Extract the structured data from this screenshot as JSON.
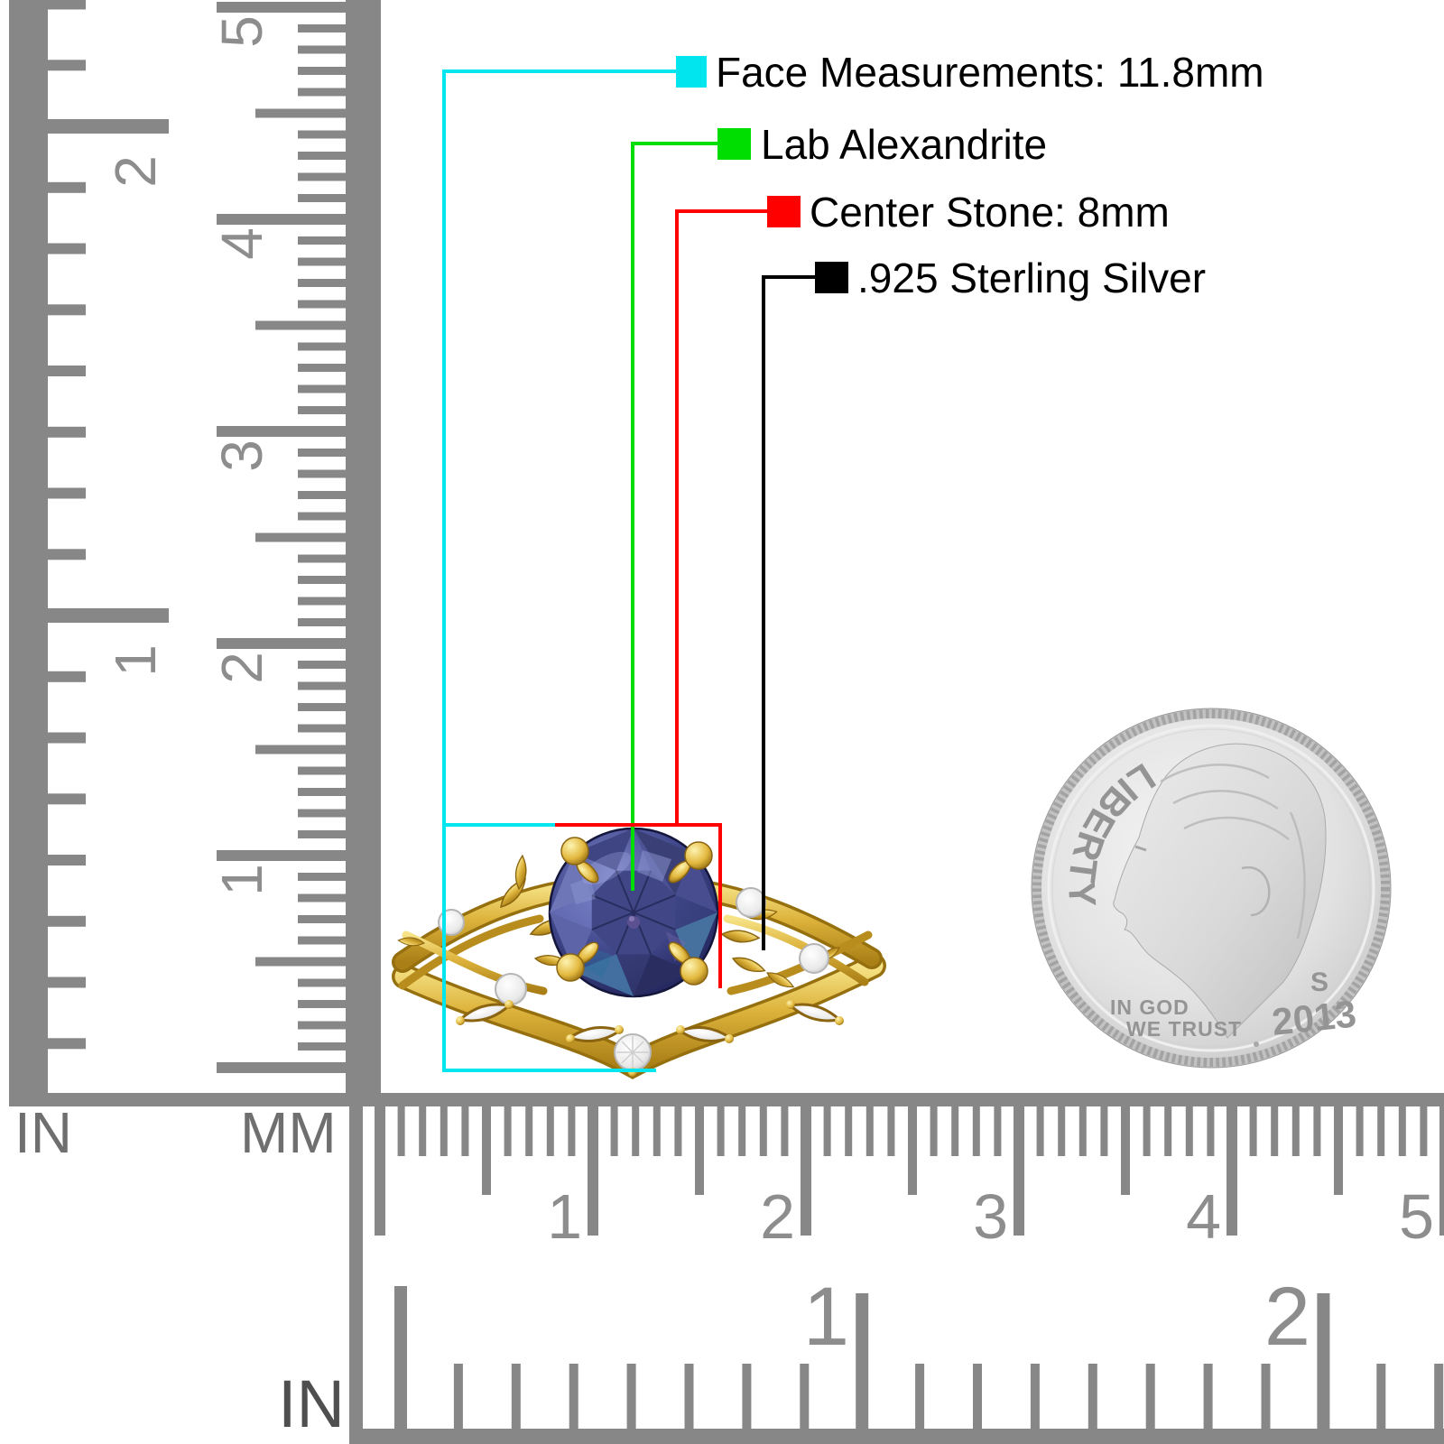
{
  "annotations": {
    "items": [
      {
        "name": "face-measurements",
        "label": "Face Measurements: 11.8mm",
        "color": "#00e5ee"
      },
      {
        "name": "lab-alexandrite",
        "label": "Lab Alexandrite",
        "color": "#00dd00"
      },
      {
        "name": "center-stone",
        "label": "Center Stone: 8mm",
        "color": "#ff0000"
      },
      {
        "name": "sterling-silver",
        "label": ".925 Sterling Silver",
        "color": "#000000"
      }
    ]
  },
  "rulers": {
    "color": "#878787",
    "number_color": "#8d8d8d",
    "vertical_inch": {
      "unit_label": "IN",
      "numbers": [
        "2",
        "1"
      ]
    },
    "vertical_mm": {
      "unit_label": "MM",
      "numbers": [
        "5",
        "4",
        "3",
        "2",
        "1"
      ]
    },
    "bottom_mm": {
      "numbers": [
        "1",
        "2",
        "3",
        "4",
        "5"
      ]
    },
    "bottom_inch": {
      "unit_label": "IN",
      "numbers": [
        "1",
        "2"
      ]
    }
  },
  "coin": {
    "legend": "LIBERTY",
    "motto_line1": "IN GOD",
    "motto_line2": "WE TRUST",
    "date": "2013",
    "mint_mark": "S"
  },
  "ring": {
    "metal_color": "#ddb33c",
    "stone_color": "#434a8e",
    "diamond_color": "#ffffff"
  }
}
